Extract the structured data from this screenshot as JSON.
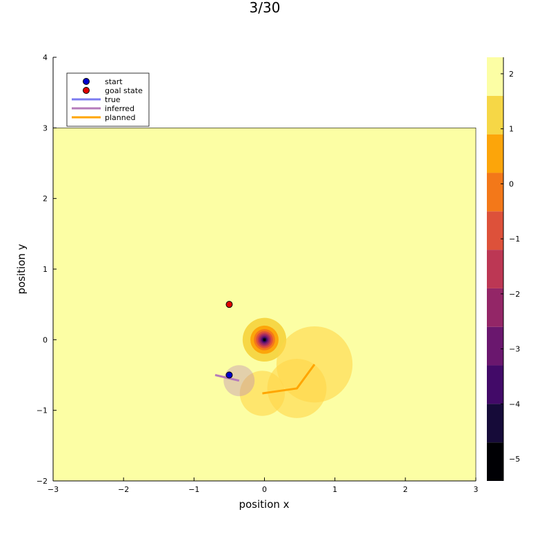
{
  "chart_data": {
    "type": "scatter",
    "title": "3/30",
    "xlabel": "position x",
    "ylabel": "position y",
    "xlim": [
      -3,
      3
    ],
    "ylim": [
      -2,
      4
    ],
    "xticks": [
      "-3",
      "-2",
      "-1",
      "0",
      "1",
      "2",
      "3"
    ],
    "yticks": [
      "-2",
      "-1",
      "0",
      "1",
      "2",
      "3",
      "4"
    ],
    "grid": false,
    "legend_position": "top-left",
    "heatmap_region": {
      "x": [
        -3,
        3
      ],
      "y": [
        -2,
        3
      ]
    },
    "background_level_color": "#fcfea4",
    "colorbar": {
      "ticks": [
        "-5",
        "-4",
        "-3",
        "-2",
        "-1",
        "0",
        "1",
        "2"
      ],
      "range": [
        -5.4,
        2.3
      ],
      "levels": [
        {
          "from": -5.4,
          "to": -4.7,
          "color": "#000004"
        },
        {
          "from": -4.7,
          "to": -4.0,
          "color": "#160b39"
        },
        {
          "from": -4.0,
          "to": -3.3,
          "color": "#420a68"
        },
        {
          "from": -3.3,
          "to": -2.6,
          "color": "#6a176e"
        },
        {
          "from": -2.6,
          "to": -1.9,
          "color": "#932667"
        },
        {
          "from": -1.9,
          "to": -1.2,
          "color": "#bc3754"
        },
        {
          "from": -1.2,
          "to": -0.5,
          "color": "#dd513a"
        },
        {
          "from": -0.5,
          "to": 0.2,
          "color": "#f37819"
        },
        {
          "from": 0.2,
          "to": 0.9,
          "color": "#fca50a"
        },
        {
          "from": 0.9,
          "to": 1.6,
          "color": "#f6d746"
        },
        {
          "from": 1.6,
          "to": 2.3,
          "color": "#fcfea4"
        }
      ]
    },
    "obstacle_contours": [
      {
        "x": 0.0,
        "y": 0.0,
        "r": 0.31,
        "color": "#f6d746"
      },
      {
        "x": 0.0,
        "y": 0.0,
        "r": 0.2,
        "color": "#fca50a"
      },
      {
        "x": 0.0,
        "y": 0.0,
        "r": 0.15,
        "color": "#f37819"
      },
      {
        "x": 0.0,
        "y": 0.0,
        "r": 0.12,
        "color": "#dd513a"
      },
      {
        "x": 0.0,
        "y": 0.0,
        "r": 0.095,
        "color": "#bc3754"
      },
      {
        "x": 0.0,
        "y": 0.0,
        "r": 0.075,
        "color": "#932667"
      },
      {
        "x": 0.0,
        "y": 0.0,
        "r": 0.055,
        "color": "#6a176e"
      },
      {
        "x": 0.0,
        "y": 0.0,
        "r": 0.04,
        "color": "#420a68"
      },
      {
        "x": 0.0,
        "y": 0.0,
        "r": 0.028,
        "color": "#160b39"
      },
      {
        "x": 0.0,
        "y": 0.0,
        "r": 0.016,
        "color": "#000004"
      }
    ],
    "uncertainty_circles": [
      {
        "x": 0.71,
        "y": -0.35,
        "r": 0.54,
        "color": "#ffd54a",
        "opacity": 0.6
      },
      {
        "x": 0.46,
        "y": -0.69,
        "r": 0.42,
        "color": "#ffd54a",
        "opacity": 0.6
      },
      {
        "x": -0.03,
        "y": -0.76,
        "r": 0.32,
        "color": "#ffd54a",
        "opacity": 0.6
      },
      {
        "x": -0.36,
        "y": -0.58,
        "r": 0.22,
        "color": "#b57bba",
        "opacity": 0.35
      }
    ],
    "series": [
      {
        "name": "start",
        "kind": "point",
        "color": "#0000cc",
        "points": [
          [
            -0.5,
            -0.5
          ]
        ]
      },
      {
        "name": "goal state",
        "kind": "point",
        "color": "#e00000",
        "points": [
          [
            -0.5,
            0.5
          ]
        ]
      },
      {
        "name": "true",
        "kind": "line",
        "color": "#7b7bf0",
        "points": [
          [
            -0.5,
            -0.5
          ]
        ]
      },
      {
        "name": "inferred",
        "kind": "line",
        "color": "#b57bba",
        "points": [
          [
            -0.7,
            -0.5
          ],
          [
            -0.36,
            -0.58
          ]
        ]
      },
      {
        "name": "planned",
        "kind": "line",
        "color": "#ffa500",
        "points": [
          [
            -0.03,
            -0.76
          ],
          [
            0.46,
            -0.69
          ],
          [
            0.71,
            -0.35
          ]
        ]
      }
    ]
  }
}
